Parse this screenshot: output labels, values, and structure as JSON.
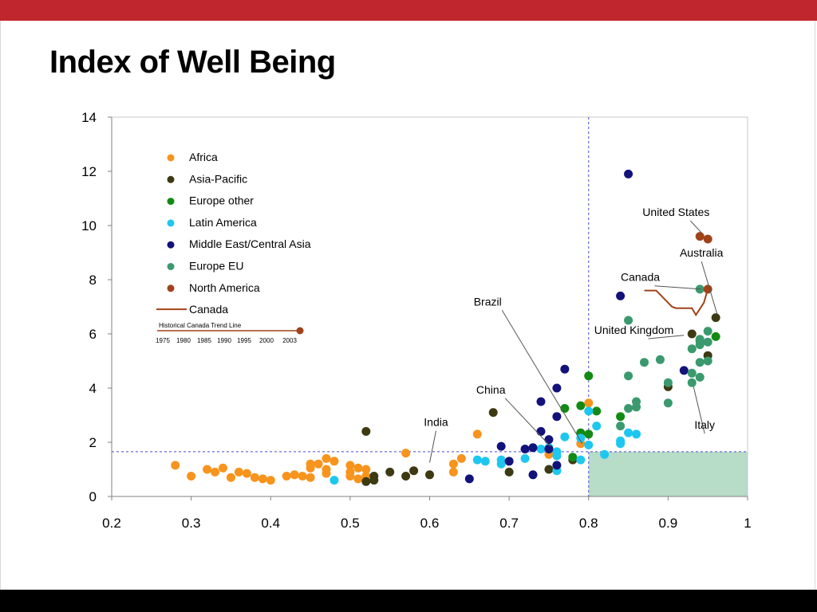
{
  "slide": {
    "title": "Index of Well Being",
    "accent_color": "#c0262d",
    "footer_color": "#000000"
  },
  "chart_data": {
    "type": "scatter",
    "title": "Index of Well Being",
    "xlabel": "",
    "ylabel": "",
    "xlim": [
      0.2,
      1
    ],
    "ylim": [
      0,
      14
    ],
    "x_ticks": [
      "0.2",
      "0.3",
      "0.4",
      "0.5",
      "0.6",
      "0.7",
      "0.8",
      "0.9",
      "1"
    ],
    "y_ticks": [
      "0",
      "2",
      "4",
      "6",
      "8",
      "10",
      "12",
      "14"
    ],
    "reference_lines": {
      "x": 0.8,
      "y": 1.65
    },
    "highlight_region": {
      "x": [
        0.8,
        1
      ],
      "y": [
        0,
        1.65
      ],
      "color": "#b7dcc8"
    },
    "legend_position": "top-left",
    "legend": {
      "entries": [
        "Africa",
        "Asia-Pacific",
        "Europe other",
        "Latin America",
        "Middle East/Central Asia",
        "Europe EU",
        "North America",
        "Canada"
      ],
      "trend_caption": "Historical Canada Trend Line",
      "trend_years": [
        "1975",
        "1980",
        "1985",
        "1990",
        "1995",
        "2000",
        "2003"
      ]
    },
    "series": [
      {
        "name": "Africa",
        "color": "#f7941d",
        "points": [
          [
            0.28,
            1.15
          ],
          [
            0.3,
            0.75
          ],
          [
            0.32,
            1.0
          ],
          [
            0.33,
            0.9
          ],
          [
            0.34,
            1.05
          ],
          [
            0.35,
            0.7
          ],
          [
            0.36,
            0.9
          ],
          [
            0.37,
            0.85
          ],
          [
            0.38,
            0.7
          ],
          [
            0.39,
            0.65
          ],
          [
            0.4,
            0.6
          ],
          [
            0.42,
            0.75
          ],
          [
            0.43,
            0.8
          ],
          [
            0.44,
            0.75
          ],
          [
            0.45,
            0.7
          ],
          [
            0.45,
            1.2
          ],
          [
            0.45,
            1.05
          ],
          [
            0.46,
            1.2
          ],
          [
            0.47,
            1.4
          ],
          [
            0.47,
            1.0
          ],
          [
            0.47,
            0.85
          ],
          [
            0.48,
            1.3
          ],
          [
            0.5,
            1.15
          ],
          [
            0.5,
            0.9
          ],
          [
            0.5,
            0.75
          ],
          [
            0.51,
            1.05
          ],
          [
            0.51,
            0.65
          ],
          [
            0.52,
            1.0
          ],
          [
            0.52,
            0.75
          ],
          [
            0.57,
            1.6
          ],
          [
            0.63,
            1.2
          ],
          [
            0.63,
            0.9
          ],
          [
            0.64,
            1.4
          ],
          [
            0.66,
            2.3
          ],
          [
            0.75,
            1.55
          ],
          [
            0.79,
            1.95
          ],
          [
            0.8,
            3.45
          ]
        ]
      },
      {
        "name": "Asia-Pacific",
        "color": "#3d3a12",
        "points": [
          [
            0.52,
            2.4
          ],
          [
            0.52,
            0.55
          ],
          [
            0.53,
            0.6
          ],
          [
            0.53,
            0.75
          ],
          [
            0.55,
            0.9
          ],
          [
            0.57,
            0.75
          ],
          [
            0.58,
            0.95
          ],
          [
            0.6,
            0.8
          ],
          [
            0.68,
            3.1
          ],
          [
            0.7,
            0.9
          ],
          [
            0.75,
            1.0
          ],
          [
            0.78,
            1.35
          ],
          [
            0.9,
            4.05
          ],
          [
            0.93,
            6.0
          ],
          [
            0.95,
            5.2
          ],
          [
            0.96,
            6.6
          ]
        ]
      },
      {
        "name": "Europe other",
        "color": "#138a13",
        "points": [
          [
            0.77,
            3.25
          ],
          [
            0.78,
            1.45
          ],
          [
            0.79,
            3.35
          ],
          [
            0.79,
            2.35
          ],
          [
            0.8,
            2.3
          ],
          [
            0.8,
            4.45
          ],
          [
            0.81,
            3.15
          ],
          [
            0.84,
            2.95
          ],
          [
            0.94,
            5.75
          ],
          [
            0.96,
            5.9
          ]
        ]
      },
      {
        "name": "Latin America",
        "color": "#1ec7ef",
        "points": [
          [
            0.48,
            0.6
          ],
          [
            0.66,
            1.35
          ],
          [
            0.67,
            1.3
          ],
          [
            0.69,
            1.35
          ],
          [
            0.69,
            1.2
          ],
          [
            0.72,
            1.4
          ],
          [
            0.74,
            1.75
          ],
          [
            0.75,
            1.8
          ],
          [
            0.76,
            1.65
          ],
          [
            0.76,
            1.5
          ],
          [
            0.76,
            0.95
          ],
          [
            0.77,
            2.2
          ],
          [
            0.79,
            2.15
          ],
          [
            0.79,
            1.35
          ],
          [
            0.8,
            3.15
          ],
          [
            0.8,
            1.9
          ],
          [
            0.81,
            2.6
          ],
          [
            0.82,
            1.55
          ],
          [
            0.84,
            2.05
          ],
          [
            0.84,
            1.95
          ],
          [
            0.85,
            2.35
          ],
          [
            0.86,
            2.3
          ]
        ]
      },
      {
        "name": "Middle East/Central Asia",
        "color": "#12127a",
        "points": [
          [
            0.65,
            0.65
          ],
          [
            0.69,
            1.85
          ],
          [
            0.7,
            1.3
          ],
          [
            0.72,
            1.75
          ],
          [
            0.73,
            1.8
          ],
          [
            0.73,
            0.8
          ],
          [
            0.74,
            3.5
          ],
          [
            0.74,
            2.4
          ],
          [
            0.75,
            2.1
          ],
          [
            0.75,
            1.75
          ],
          [
            0.76,
            4.0
          ],
          [
            0.76,
            2.95
          ],
          [
            0.76,
            1.15
          ],
          [
            0.77,
            4.7
          ],
          [
            0.84,
            7.4
          ],
          [
            0.85,
            11.9
          ],
          [
            0.92,
            4.65
          ]
        ]
      },
      {
        "name": "Europe EU",
        "color": "#3a9a6e",
        "points": [
          [
            0.84,
            2.6
          ],
          [
            0.85,
            6.5
          ],
          [
            0.85,
            4.45
          ],
          [
            0.85,
            3.25
          ],
          [
            0.86,
            3.5
          ],
          [
            0.86,
            3.3
          ],
          [
            0.87,
            4.95
          ],
          [
            0.89,
            5.05
          ],
          [
            0.9,
            4.2
          ],
          [
            0.9,
            3.45
          ],
          [
            0.93,
            5.45
          ],
          [
            0.93,
            4.55
          ],
          [
            0.93,
            4.2
          ],
          [
            0.94,
            7.65
          ],
          [
            0.94,
            5.8
          ],
          [
            0.94,
            5.6
          ],
          [
            0.94,
            4.95
          ],
          [
            0.94,
            4.4
          ],
          [
            0.95,
            6.1
          ],
          [
            0.95,
            5.7
          ],
          [
            0.95,
            5.0
          ]
        ]
      },
      {
        "name": "North America",
        "color": "#a0431a",
        "points": [
          [
            0.94,
            9.6
          ],
          [
            0.95,
            9.5
          ],
          [
            0.95,
            7.65
          ]
        ]
      }
    ],
    "canada_trend": {
      "name": "Canada",
      "color": "#a0431a",
      "points": [
        [
          0.87,
          7.6
        ],
        [
          0.885,
          7.6
        ],
        [
          0.89,
          7.45
        ],
        [
          0.905,
          7.0
        ],
        [
          0.91,
          6.95
        ],
        [
          0.93,
          6.95
        ],
        [
          0.935,
          6.7
        ],
        [
          0.945,
          7.15
        ],
        [
          0.95,
          7.65
        ]
      ]
    },
    "annotations": [
      {
        "text": "United States",
        "label": [
          0.91,
          10.35
        ],
        "target": [
          0.943,
          9.7
        ],
        "anchor": "middle"
      },
      {
        "text": "Australia",
        "label": [
          0.942,
          8.85
        ],
        "target": [
          0.962,
          6.7
        ],
        "anchor": "middle"
      },
      {
        "text": "Canada",
        "label": [
          0.865,
          7.95
        ],
        "target": [
          0.942,
          7.65
        ],
        "anchor": "middle"
      },
      {
        "text": "Brazil",
        "label": [
          0.673,
          7.05
        ],
        "target": [
          0.792,
          1.95
        ],
        "anchor": "middle"
      },
      {
        "text": "United Kingdom",
        "label": [
          0.857,
          6.0
        ],
        "target": [
          0.92,
          5.95
        ],
        "anchor": "middle"
      },
      {
        "text": "China",
        "label": [
          0.677,
          3.8
        ],
        "target": [
          0.752,
          1.85
        ],
        "anchor": "middle"
      },
      {
        "text": "India",
        "label": [
          0.608,
          2.6
        ],
        "target": [
          0.6,
          1.25
        ],
        "anchor": "middle"
      },
      {
        "text": "Italy",
        "label": [
          0.946,
          2.5
        ],
        "target": [
          0.932,
          4.05
        ],
        "anchor": "middle"
      }
    ]
  }
}
